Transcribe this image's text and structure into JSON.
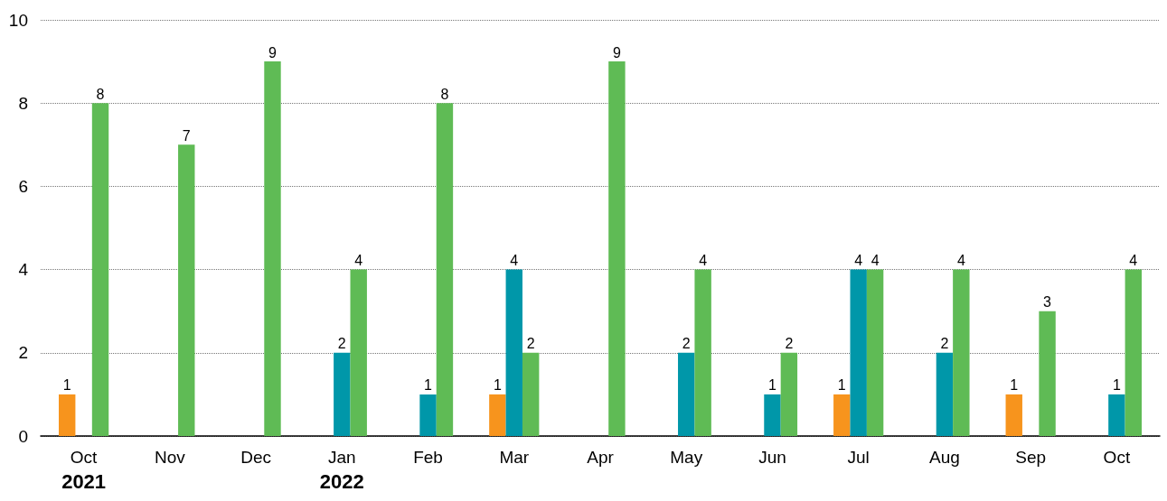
{
  "chart_data": {
    "type": "bar",
    "categories": [
      "Oct\n2021",
      "Nov",
      "Dec",
      "Jan\n2022",
      "Feb",
      "Mar",
      "Apr",
      "May",
      "Jun",
      "Jul",
      "Aug",
      "Sep",
      "Oct"
    ],
    "series": [
      {
        "color": "#f7941d",
        "values": [
          1,
          null,
          null,
          null,
          null,
          1,
          null,
          null,
          null,
          1,
          null,
          1,
          null
        ]
      },
      {
        "color": "#0097a9",
        "values": [
          null,
          null,
          null,
          2,
          1,
          4,
          null,
          2,
          1,
          4,
          2,
          null,
          1
        ]
      },
      {
        "color": "#5fbb55",
        "values": [
          8,
          7,
          9,
          4,
          8,
          2,
          9,
          4,
          2,
          4,
          4,
          3,
          4
        ]
      }
    ],
    "ylim": [
      0,
      10
    ],
    "yticks": [
      0,
      2,
      4,
      6,
      8,
      10
    ],
    "grid": "y",
    "data_labels": true
  }
}
